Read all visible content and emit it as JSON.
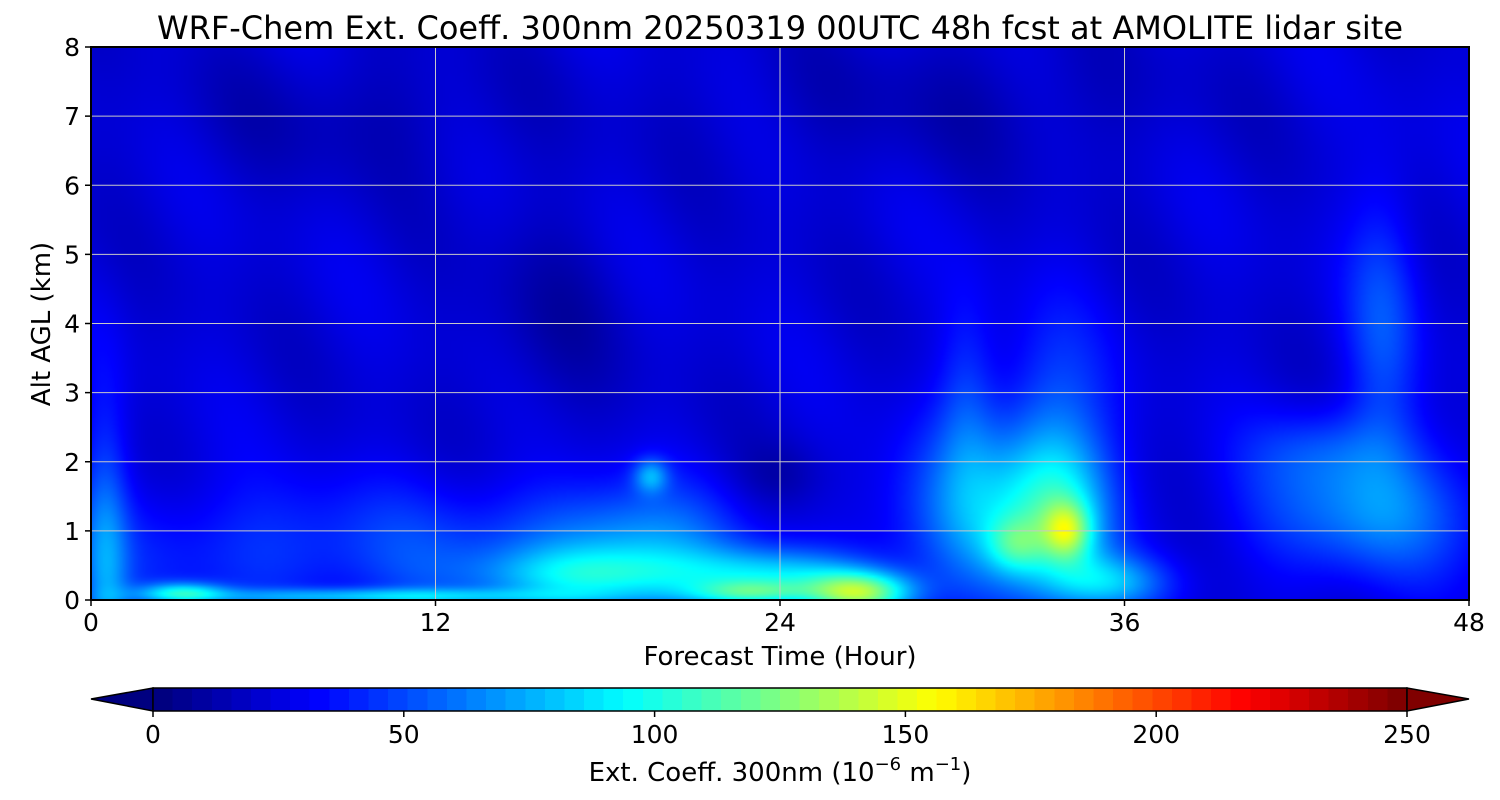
{
  "chart_data": {
    "type": "heatmap",
    "title": "WRF-Chem Ext. Coeff. 300nm  20250319 00UTC 48h fcst at AMOLITE lidar site",
    "xlabel": "Forecast Time (Hour)",
    "ylabel": "Alt AGL (km)",
    "xlim": [
      0,
      48
    ],
    "ylim": [
      0,
      8
    ],
    "x_ticks": [
      "0",
      "12",
      "24",
      "36",
      "48"
    ],
    "y_ticks": [
      "0",
      "1",
      "2",
      "3",
      "4",
      "5",
      "6",
      "7",
      "8"
    ],
    "grid": true,
    "colormap": "jet",
    "colorbar": {
      "label_main": "Ext. Coeff. 300nm  (10",
      "label_exp1": "−6",
      "label_mid": " m",
      "label_exp2": "−1",
      "label_end": ")",
      "min": 0,
      "max": 250,
      "ticks": [
        "0",
        "50",
        "100",
        "150",
        "200",
        "250"
      ],
      "extend": "both",
      "placement": "bottom"
    },
    "background_value": 22,
    "features": [
      {
        "x": 0.5,
        "y": 0.15,
        "sx": 0.8,
        "sy": 2.5,
        "v": 38
      },
      {
        "x": 6,
        "y": 0.7,
        "sx": 7,
        "sy": 1.0,
        "v": 20
      },
      {
        "x": 14,
        "y": 0.7,
        "sx": 5,
        "sy": 1.0,
        "v": 16
      },
      {
        "x": 3.2,
        "y": 0.1,
        "sx": 1.5,
        "sy": 0.15,
        "v": 60
      },
      {
        "x": 10,
        "y": 0.05,
        "sx": 6,
        "sy": 0.12,
        "v": 50
      },
      {
        "x": 19,
        "y": 0.7,
        "sx": 3.5,
        "sy": 0.9,
        "v": 45
      },
      {
        "x": 19.5,
        "y": 1.8,
        "sx": 0.6,
        "sy": 0.25,
        "v": 40
      },
      {
        "x": 17.5,
        "y": 0.35,
        "sx": 4,
        "sy": 0.4,
        "v": 40
      },
      {
        "x": 24,
        "y": 0.35,
        "sx": 3,
        "sy": 0.4,
        "v": 55
      },
      {
        "x": 26.8,
        "y": 0.1,
        "sx": 1.8,
        "sy": 0.3,
        "v": 95
      },
      {
        "x": 23,
        "y": 0.1,
        "sx": 2,
        "sy": 0.18,
        "v": 50
      },
      {
        "x": 31,
        "y": 1.2,
        "sx": 3,
        "sy": 1.3,
        "v": 48
      },
      {
        "x": 30.5,
        "y": 3.0,
        "sx": 1.0,
        "sy": 1.5,
        "v": 18
      },
      {
        "x": 33.5,
        "y": 2.7,
        "sx": 1.8,
        "sy": 1.5,
        "v": 24
      },
      {
        "x": 33.8,
        "y": 1.2,
        "sx": 1.8,
        "sy": 1.2,
        "v": 55
      },
      {
        "x": 34,
        "y": 1.0,
        "sx": 0.8,
        "sy": 0.4,
        "v": 55
      },
      {
        "x": 32.2,
        "y": 0.8,
        "sx": 1.0,
        "sy": 0.4,
        "v": 35
      },
      {
        "x": 35.5,
        "y": 0.25,
        "sx": 2,
        "sy": 0.4,
        "v": 45
      },
      {
        "x": 44.5,
        "y": 1.3,
        "sx": 4,
        "sy": 1.0,
        "v": 40
      },
      {
        "x": 45,
        "y": 4.0,
        "sx": 1.3,
        "sy": 2.0,
        "v": 26
      },
      {
        "x": 43,
        "y": 2.2,
        "sx": 2.5,
        "sy": 0.6,
        "v": 18
      },
      {
        "x": 24,
        "y": 1.8,
        "sx": 1.5,
        "sy": 0.5,
        "v": -10
      },
      {
        "x": 16,
        "y": 4.0,
        "sx": 2.5,
        "sy": 1.5,
        "v": -10
      },
      {
        "x": 9,
        "y": 7.0,
        "sx": 6,
        "sy": 1.0,
        "v": -8
      },
      {
        "x": 30,
        "y": 7.2,
        "sx": 8,
        "sy": 1.0,
        "v": -8
      }
    ]
  }
}
